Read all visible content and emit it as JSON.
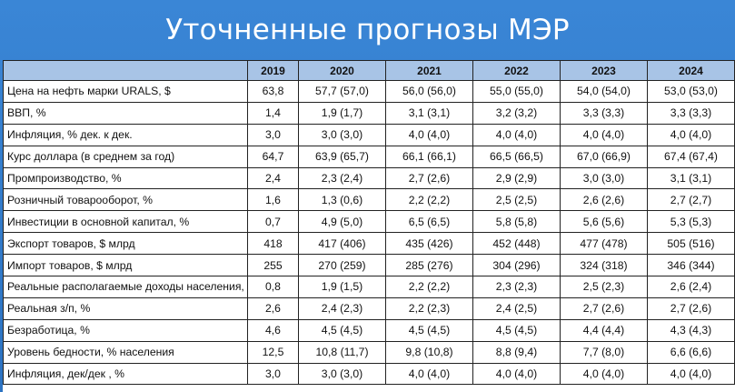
{
  "title": "Уточненные прогнозы МЭР",
  "table": {
    "columns": [
      "",
      "2019",
      "2020",
      "2021",
      "2022",
      "2023",
      "2024"
    ],
    "rows": [
      {
        "label": "Цена на нефть марки URALS, $",
        "values": [
          "63,8",
          "57,7 (57,0)",
          "56,0 (56,0)",
          "55,0 (55,0)",
          "54,0 (54,0)",
          "53,0 (53,0)"
        ]
      },
      {
        "label": "ВВП, %",
        "values": [
          "1,4",
          "1,9 (1,7)",
          "3,1 (3,1)",
          "3,2 (3,2)",
          "3,3 (3,3)",
          "3,3 (3,3)"
        ]
      },
      {
        "label": "Инфляция, % дек. к дек.",
        "values": [
          "3,0",
          "3,0 (3,0)",
          "4,0 (4,0)",
          "4,0 (4,0)",
          "4,0 (4,0)",
          "4,0 (4,0)"
        ]
      },
      {
        "label": "Курс доллара (в среднем за год)",
        "values": [
          "64,7",
          "63,9 (65,7)",
          "66,1 (66,1)",
          "66,5 (66,5)",
          "67,0 (66,9)",
          "67,4 (67,4)"
        ]
      },
      {
        "label": "Промпроизводство, %",
        "values": [
          "2,4",
          "2,3 (2,4)",
          "2,7 (2,6)",
          "2,9 (2,9)",
          "3,0 (3,0)",
          "3,1 (3,1)"
        ]
      },
      {
        "label": "Розничный товарооборот, %",
        "values": [
          "1,6",
          "1,3 (0,6)",
          "2,2 (2,2)",
          "2,5 (2,5)",
          "2,6 (2,6)",
          "2,7 (2,7)"
        ]
      },
      {
        "label": "Инвестиции в основной капитал, %",
        "values": [
          "0,7",
          "4,9 (5,0)",
          "6,5 (6,5)",
          "5,8 (5,8)",
          "5,6 (5,6)",
          "5,3 (5,3)"
        ]
      },
      {
        "label": "Экспорт товаров, $ млрд",
        "values": [
          "418",
          "417 (406)",
          "435 (426)",
          "452 (448)",
          "477 (478)",
          "505 (516)"
        ]
      },
      {
        "label": "Импорт товаров, $ млрд",
        "values": [
          "255",
          "270 (259)",
          "285 (276)",
          "304 (296)",
          "324 (318)",
          "346 (344)"
        ]
      },
      {
        "label": "Реальные располагаемые доходы населения, %",
        "values": [
          "0,8",
          "1,9 (1,5)",
          "2,2 (2,2)",
          "2,3 (2,3)",
          "2,5 (2,3)",
          "2,6 (2,4)"
        ]
      },
      {
        "label": "Реальная з/п, %",
        "values": [
          "2,6",
          "2,4 (2,3)",
          "2,2 (2,3)",
          "2,4 (2,5)",
          "2,7 (2,6)",
          "2,7 (2,6)"
        ]
      },
      {
        "label": "Безработица, %",
        "values": [
          "4,6",
          "4,5 (4,5)",
          "4,5 (4,5)",
          "4,5 (4,5)",
          "4,4 (4,4)",
          "4,3 (4,3)"
        ]
      },
      {
        "label": "Уровень бедности, % населения",
        "values": [
          "12,5",
          "10,8 (11,7)",
          "9,8 (10,8)",
          "8,8 (9,4)",
          "7,7 (8,0)",
          "6,6 (6,6)"
        ]
      },
      {
        "label": "Инфляция, дек/дек , %",
        "values": [
          "3,0",
          "3,0  (3,0)",
          "4,0 (4,0)",
          "4,0 (4,0)",
          "4,0 (4,0)",
          "4,0 (4,0)"
        ]
      }
    ]
  }
}
